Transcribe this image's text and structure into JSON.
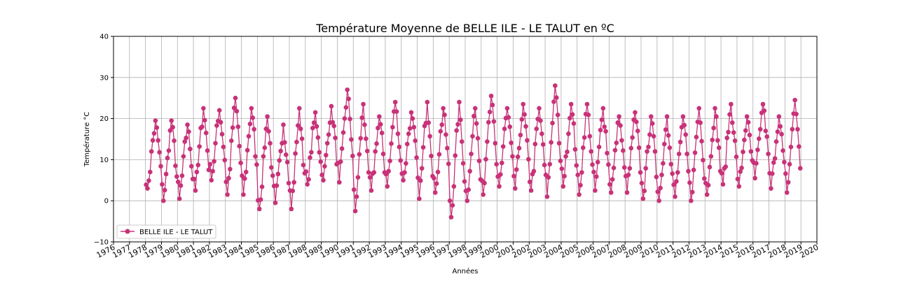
{
  "chart_data": {
    "type": "line",
    "title": "Température Moyenne de BELLE ILE - LE TALUT en ºC",
    "xlabel": "Années",
    "ylabel": "Température °C",
    "xlim": [
      1976,
      2020
    ],
    "ylim": [
      -10,
      40
    ],
    "x_ticks": [
      "1976",
      "1977",
      "1978",
      "1979",
      "1980",
      "1981",
      "1982",
      "1983",
      "1984",
      "1985",
      "1986",
      "1987",
      "1988",
      "1989",
      "1990",
      "1991",
      "1992",
      "1993",
      "1994",
      "1995",
      "1996",
      "1997",
      "1998",
      "1999",
      "2000",
      "2001",
      "2002",
      "2003",
      "2004",
      "2005",
      "2006",
      "2007",
      "2008",
      "2009",
      "2010",
      "2011",
      "2012",
      "2013",
      "2014",
      "2015",
      "2016",
      "2017",
      "2018",
      "2019",
      "2020"
    ],
    "y_ticks": [
      "−10",
      "0",
      "10",
      "20",
      "30",
      "40"
    ],
    "grid": true,
    "legend_position": "lower-left",
    "color": "#c83278",
    "series": [
      {
        "name": "BELLE ILE - LE TALUT",
        "x_start": "1978-01",
        "x_end": "2018-12",
        "annual_mean": 12,
        "seasonal_amplitude": 6.5,
        "yearly_max": [
          19.5,
          19.5,
          18.5,
          22.5,
          22,
          25,
          22.5,
          20.5,
          18.5,
          22.5,
          21.5,
          23,
          27,
          23.5,
          20.5,
          24,
          21.5,
          24,
          22.5,
          24,
          22.5,
          25.5,
          22.5,
          23.5,
          22.5,
          28,
          23.5,
          23.5,
          22.5,
          20.5,
          21.5,
          20.5,
          20.5,
          20.5,
          22.5,
          22.5,
          23.5,
          20.5,
          23.5,
          20.5,
          24.5
        ],
        "yearly_min": [
          3,
          0,
          0.5,
          2.5,
          5,
          1.5,
          1.5,
          -2,
          -0.5,
          -2,
          4,
          5,
          4.5,
          -2.5,
          2.5,
          3.5,
          5,
          0.5,
          2,
          -4,
          0,
          1.5,
          3.5,
          3,
          2.5,
          1,
          3.5,
          1.5,
          2.5,
          2,
          2,
          0.5,
          0,
          1,
          0,
          1.5,
          4,
          3.5,
          5.5,
          3,
          2
        ]
      }
    ]
  }
}
